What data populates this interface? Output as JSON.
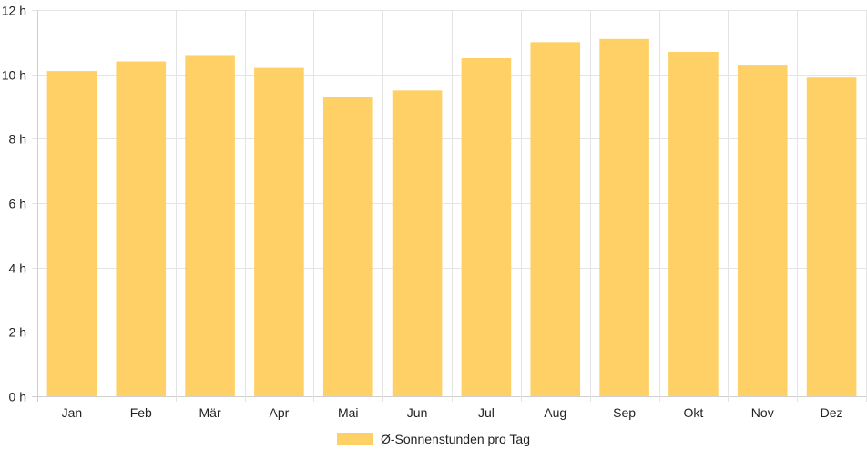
{
  "chart_data": {
    "type": "bar",
    "categories": [
      "Jan",
      "Feb",
      "Mär",
      "Apr",
      "Mai",
      "Jun",
      "Jul",
      "Aug",
      "Sep",
      "Okt",
      "Nov",
      "Dez"
    ],
    "series": [
      {
        "name": "Ø-Sonnenstunden pro Tag",
        "values": [
          10.1,
          10.4,
          10.6,
          10.2,
          9.3,
          9.5,
          10.5,
          11.0,
          11.1,
          10.7,
          10.3,
          9.9
        ],
        "color": "#fed066"
      }
    ],
    "ylim": [
      0,
      12
    ],
    "y_ticks": [
      0,
      2,
      4,
      6,
      8,
      10,
      12
    ],
    "y_tick_suffix": " h",
    "grid": true,
    "legend_position": "bottom-center"
  }
}
